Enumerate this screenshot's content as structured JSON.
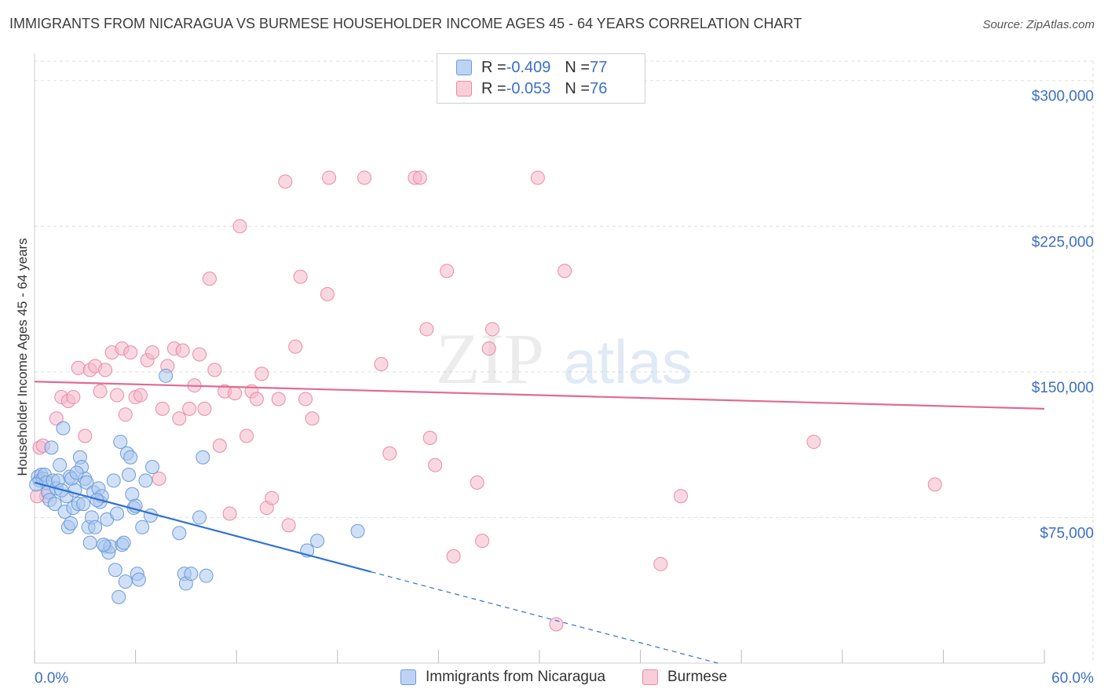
{
  "title": "IMMIGRANTS FROM NICARAGUA VS BURMESE HOUSEHOLDER INCOME AGES 45 - 64 YEARS CORRELATION CHART",
  "source": "Source: ZipAtlas.com",
  "watermark": {
    "zip": "ZIP",
    "atlas": "atlas"
  },
  "legend": {
    "rows": [
      {
        "r_label": "R = ",
        "r_value": "-0.409",
        "n_label": "N = ",
        "n_value": "77"
      },
      {
        "r_label": "R = ",
        "r_value": "-0.053",
        "n_label": "N = ",
        "n_value": "76"
      }
    ]
  },
  "colors": {
    "blue_fill": "#a9c6ee",
    "blue_stroke": "#6d9bdb",
    "blue_line": "#2f72d1",
    "pink_fill": "#f6b8cb",
    "pink_stroke": "#e98aa9",
    "pink_line": "#e06b94",
    "axis_label": "#3b6fc4",
    "grid": "#dddddd"
  },
  "chart_data": {
    "type": "scatter",
    "title": "IMMIGRANTS FROM NICARAGUA VS BURMESE HOUSEHOLDER INCOME AGES 45 - 64 YEARS CORRELATION CHART",
    "xlabel": "",
    "ylabel": "Householder Income Ages 45 - 64 years",
    "xlim": [
      0,
      60
    ],
    "ylim": [
      0,
      310000
    ],
    "x_tick_labels": [
      "0.0%",
      "60.0%"
    ],
    "y_ticks": [
      75000,
      150000,
      225000,
      300000
    ],
    "y_tick_labels": [
      "$75,000",
      "$150,000",
      "$225,000",
      "$300,000"
    ],
    "grid": true,
    "legend_position": "top-center",
    "series": [
      {
        "name": "Immigrants from Nicaragua",
        "color": "#6d9bdb",
        "points": [
          [
            0.2,
            96000
          ],
          [
            0.3,
            94000
          ],
          [
            0.4,
            97000
          ],
          [
            0.5,
            95000
          ],
          [
            0.6,
            97000
          ],
          [
            0.7,
            93000
          ],
          [
            0.8,
            88000
          ],
          [
            0.9,
            84000
          ],
          [
            1.0,
            111000
          ],
          [
            1.1,
            94000
          ],
          [
            1.2,
            82000
          ],
          [
            1.3,
            90000
          ],
          [
            1.5,
            102000
          ],
          [
            1.7,
            121000
          ],
          [
            1.8,
            78000
          ],
          [
            1.9,
            86000
          ],
          [
            2.0,
            70000
          ],
          [
            2.1,
            96000
          ],
          [
            2.2,
            95000
          ],
          [
            2.3,
            80000
          ],
          [
            2.4,
            89000
          ],
          [
            2.6,
            82000
          ],
          [
            2.7,
            106000
          ],
          [
            2.8,
            101000
          ],
          [
            2.9,
            82000
          ],
          [
            3.0,
            95000
          ],
          [
            3.1,
            93000
          ],
          [
            3.2,
            70000
          ],
          [
            3.3,
            62000
          ],
          [
            3.4,
            75000
          ],
          [
            3.5,
            88000
          ],
          [
            3.6,
            70000
          ],
          [
            3.8,
            90000
          ],
          [
            3.9,
            83000
          ],
          [
            4.0,
            86000
          ],
          [
            4.2,
            60000
          ],
          [
            4.3,
            74000
          ],
          [
            4.4,
            57000
          ],
          [
            4.5,
            60000
          ],
          [
            4.7,
            94000
          ],
          [
            4.8,
            48000
          ],
          [
            4.9,
            77000
          ],
          [
            5.0,
            34000
          ],
          [
            5.1,
            114000
          ],
          [
            5.2,
            61000
          ],
          [
            5.3,
            62000
          ],
          [
            5.4,
            42000
          ],
          [
            5.5,
            108000
          ],
          [
            5.7,
            106000
          ],
          [
            5.8,
            87000
          ],
          [
            5.9,
            80000
          ],
          [
            6.0,
            81000
          ],
          [
            6.1,
            46000
          ],
          [
            6.2,
            43000
          ],
          [
            6.4,
            70000
          ],
          [
            6.6,
            94000
          ],
          [
            6.9,
            76000
          ],
          [
            7.0,
            101000
          ],
          [
            7.8,
            148000
          ],
          [
            8.6,
            67000
          ],
          [
            8.9,
            46000
          ],
          [
            9.0,
            41000
          ],
          [
            9.3,
            46000
          ],
          [
            9.8,
            75000
          ],
          [
            10.0,
            106000
          ],
          [
            10.2,
            45000
          ],
          [
            16.2,
            58000
          ],
          [
            16.8,
            63000
          ],
          [
            19.2,
            68000
          ],
          [
            2.5,
            98000
          ],
          [
            1.4,
            94000
          ],
          [
            3.7,
            84000
          ],
          [
            4.1,
            61000
          ],
          [
            5.6,
            97000
          ],
          [
            0.1,
            92000
          ],
          [
            1.6,
            89000
          ],
          [
            2.15,
            72000
          ]
        ]
      },
      {
        "name": "Burmese",
        "color": "#e98aa9",
        "points": [
          [
            0.3,
            111000
          ],
          [
            0.5,
            112000
          ],
          [
            0.7,
            86000
          ],
          [
            1.3,
            126000
          ],
          [
            1.6,
            137000
          ],
          [
            2.0,
            135000
          ],
          [
            2.3,
            137000
          ],
          [
            2.6,
            152000
          ],
          [
            3.0,
            117000
          ],
          [
            3.3,
            151000
          ],
          [
            3.6,
            153000
          ],
          [
            3.9,
            140000
          ],
          [
            4.2,
            151000
          ],
          [
            4.6,
            160000
          ],
          [
            4.9,
            138000
          ],
          [
            5.2,
            162000
          ],
          [
            5.4,
            128000
          ],
          [
            5.7,
            160000
          ],
          [
            6.0,
            137000
          ],
          [
            6.3,
            138000
          ],
          [
            6.7,
            156000
          ],
          [
            7.0,
            160000
          ],
          [
            7.4,
            95000
          ],
          [
            7.6,
            131000
          ],
          [
            7.9,
            153000
          ],
          [
            8.3,
            162000
          ],
          [
            8.6,
            126000
          ],
          [
            8.8,
            161000
          ],
          [
            9.2,
            131000
          ],
          [
            9.5,
            143000
          ],
          [
            9.8,
            159000
          ],
          [
            10.1,
            131000
          ],
          [
            10.4,
            198000
          ],
          [
            10.7,
            151000
          ],
          [
            11.0,
            112000
          ],
          [
            11.3,
            140000
          ],
          [
            11.6,
            77000
          ],
          [
            11.9,
            139000
          ],
          [
            12.2,
            225000
          ],
          [
            12.6,
            117000
          ],
          [
            12.9,
            140000
          ],
          [
            13.2,
            136000
          ],
          [
            13.5,
            149000
          ],
          [
            13.8,
            80000
          ],
          [
            14.1,
            85000
          ],
          [
            14.5,
            136000
          ],
          [
            14.9,
            248000
          ],
          [
            15.1,
            71000
          ],
          [
            15.5,
            163000
          ],
          [
            15.8,
            199000
          ],
          [
            16.1,
            136000
          ],
          [
            16.5,
            126000
          ],
          [
            17.4,
            190000
          ],
          [
            17.5,
            250000
          ],
          [
            19.6,
            250000
          ],
          [
            20.6,
            154000
          ],
          [
            21.1,
            108000
          ],
          [
            22.6,
            250000
          ],
          [
            22.9,
            250000
          ],
          [
            23.3,
            172000
          ],
          [
            23.5,
            116000
          ],
          [
            23.8,
            102000
          ],
          [
            24.5,
            202000
          ],
          [
            24.9,
            55000
          ],
          [
            26.3,
            93000
          ],
          [
            26.6,
            63000
          ],
          [
            27.0,
            162000
          ],
          [
            27.2,
            172000
          ],
          [
            29.9,
            250000
          ],
          [
            31.0,
            20000
          ],
          [
            31.5,
            202000
          ],
          [
            37.2,
            51000
          ],
          [
            38.4,
            86000
          ],
          [
            46.3,
            114000
          ],
          [
            53.5,
            92000
          ],
          [
            0.15,
            86000
          ]
        ]
      }
    ],
    "trend_lines": [
      {
        "series": "Immigrants from Nicaragua",
        "x": [
          0,
          20
        ],
        "y": [
          93000,
          47000
        ],
        "dashed_extension_to": [
          40.6,
          0
        ]
      },
      {
        "series": "Burmese",
        "x": [
          0,
          60
        ],
        "y": [
          145000,
          131000
        ]
      }
    ]
  },
  "bottom_legend": [
    "Immigrants from Nicaragua",
    "Burmese"
  ]
}
